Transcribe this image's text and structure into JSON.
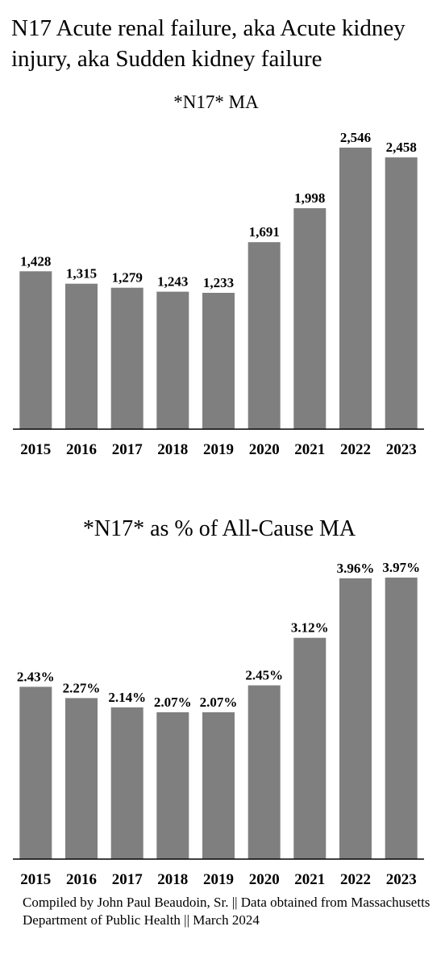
{
  "page": {
    "title": "N17 Acute renal failure, aka Acute kidney injury, aka Sudden kidney failure",
    "footer": "Compiled by John Paul Beaudoin, Sr. || Data obtained from Massachusetts Department of Public Health || March 2024"
  },
  "colors": {
    "bar": "#7f7f7f",
    "axis": "#000000",
    "text": "#000000"
  },
  "chart_data": [
    {
      "type": "bar",
      "title": "*N17* MA",
      "categories": [
        "2015",
        "2016",
        "2017",
        "2018",
        "2019",
        "2020",
        "2021",
        "2022",
        "2023"
      ],
      "values": [
        1428,
        1315,
        1279,
        1243,
        1233,
        1691,
        1998,
        2546,
        2458
      ],
      "labels": [
        "1,428",
        "1,315",
        "1,279",
        "1,243",
        "1,233",
        "1,691",
        "1,998",
        "2,546",
        "2,458"
      ],
      "xlabel": "",
      "ylabel": "",
      "ylim": [
        0,
        2600
      ],
      "grid": false,
      "legend": "none"
    },
    {
      "type": "bar",
      "title": "*N17* as % of All-Cause MA",
      "categories": [
        "2015",
        "2016",
        "2017",
        "2018",
        "2019",
        "2020",
        "2021",
        "2022",
        "2023"
      ],
      "values": [
        2.43,
        2.27,
        2.14,
        2.07,
        2.07,
        2.45,
        3.12,
        3.96,
        3.97
      ],
      "labels": [
        "2.43%",
        "2.27%",
        "2.14%",
        "2.07%",
        "2.07%",
        "2.45%",
        "3.12%",
        "3.96%",
        "3.97%"
      ],
      "xlabel": "",
      "ylabel": "",
      "ylim": [
        0,
        4.0
      ],
      "grid": false,
      "legend": "none"
    }
  ]
}
